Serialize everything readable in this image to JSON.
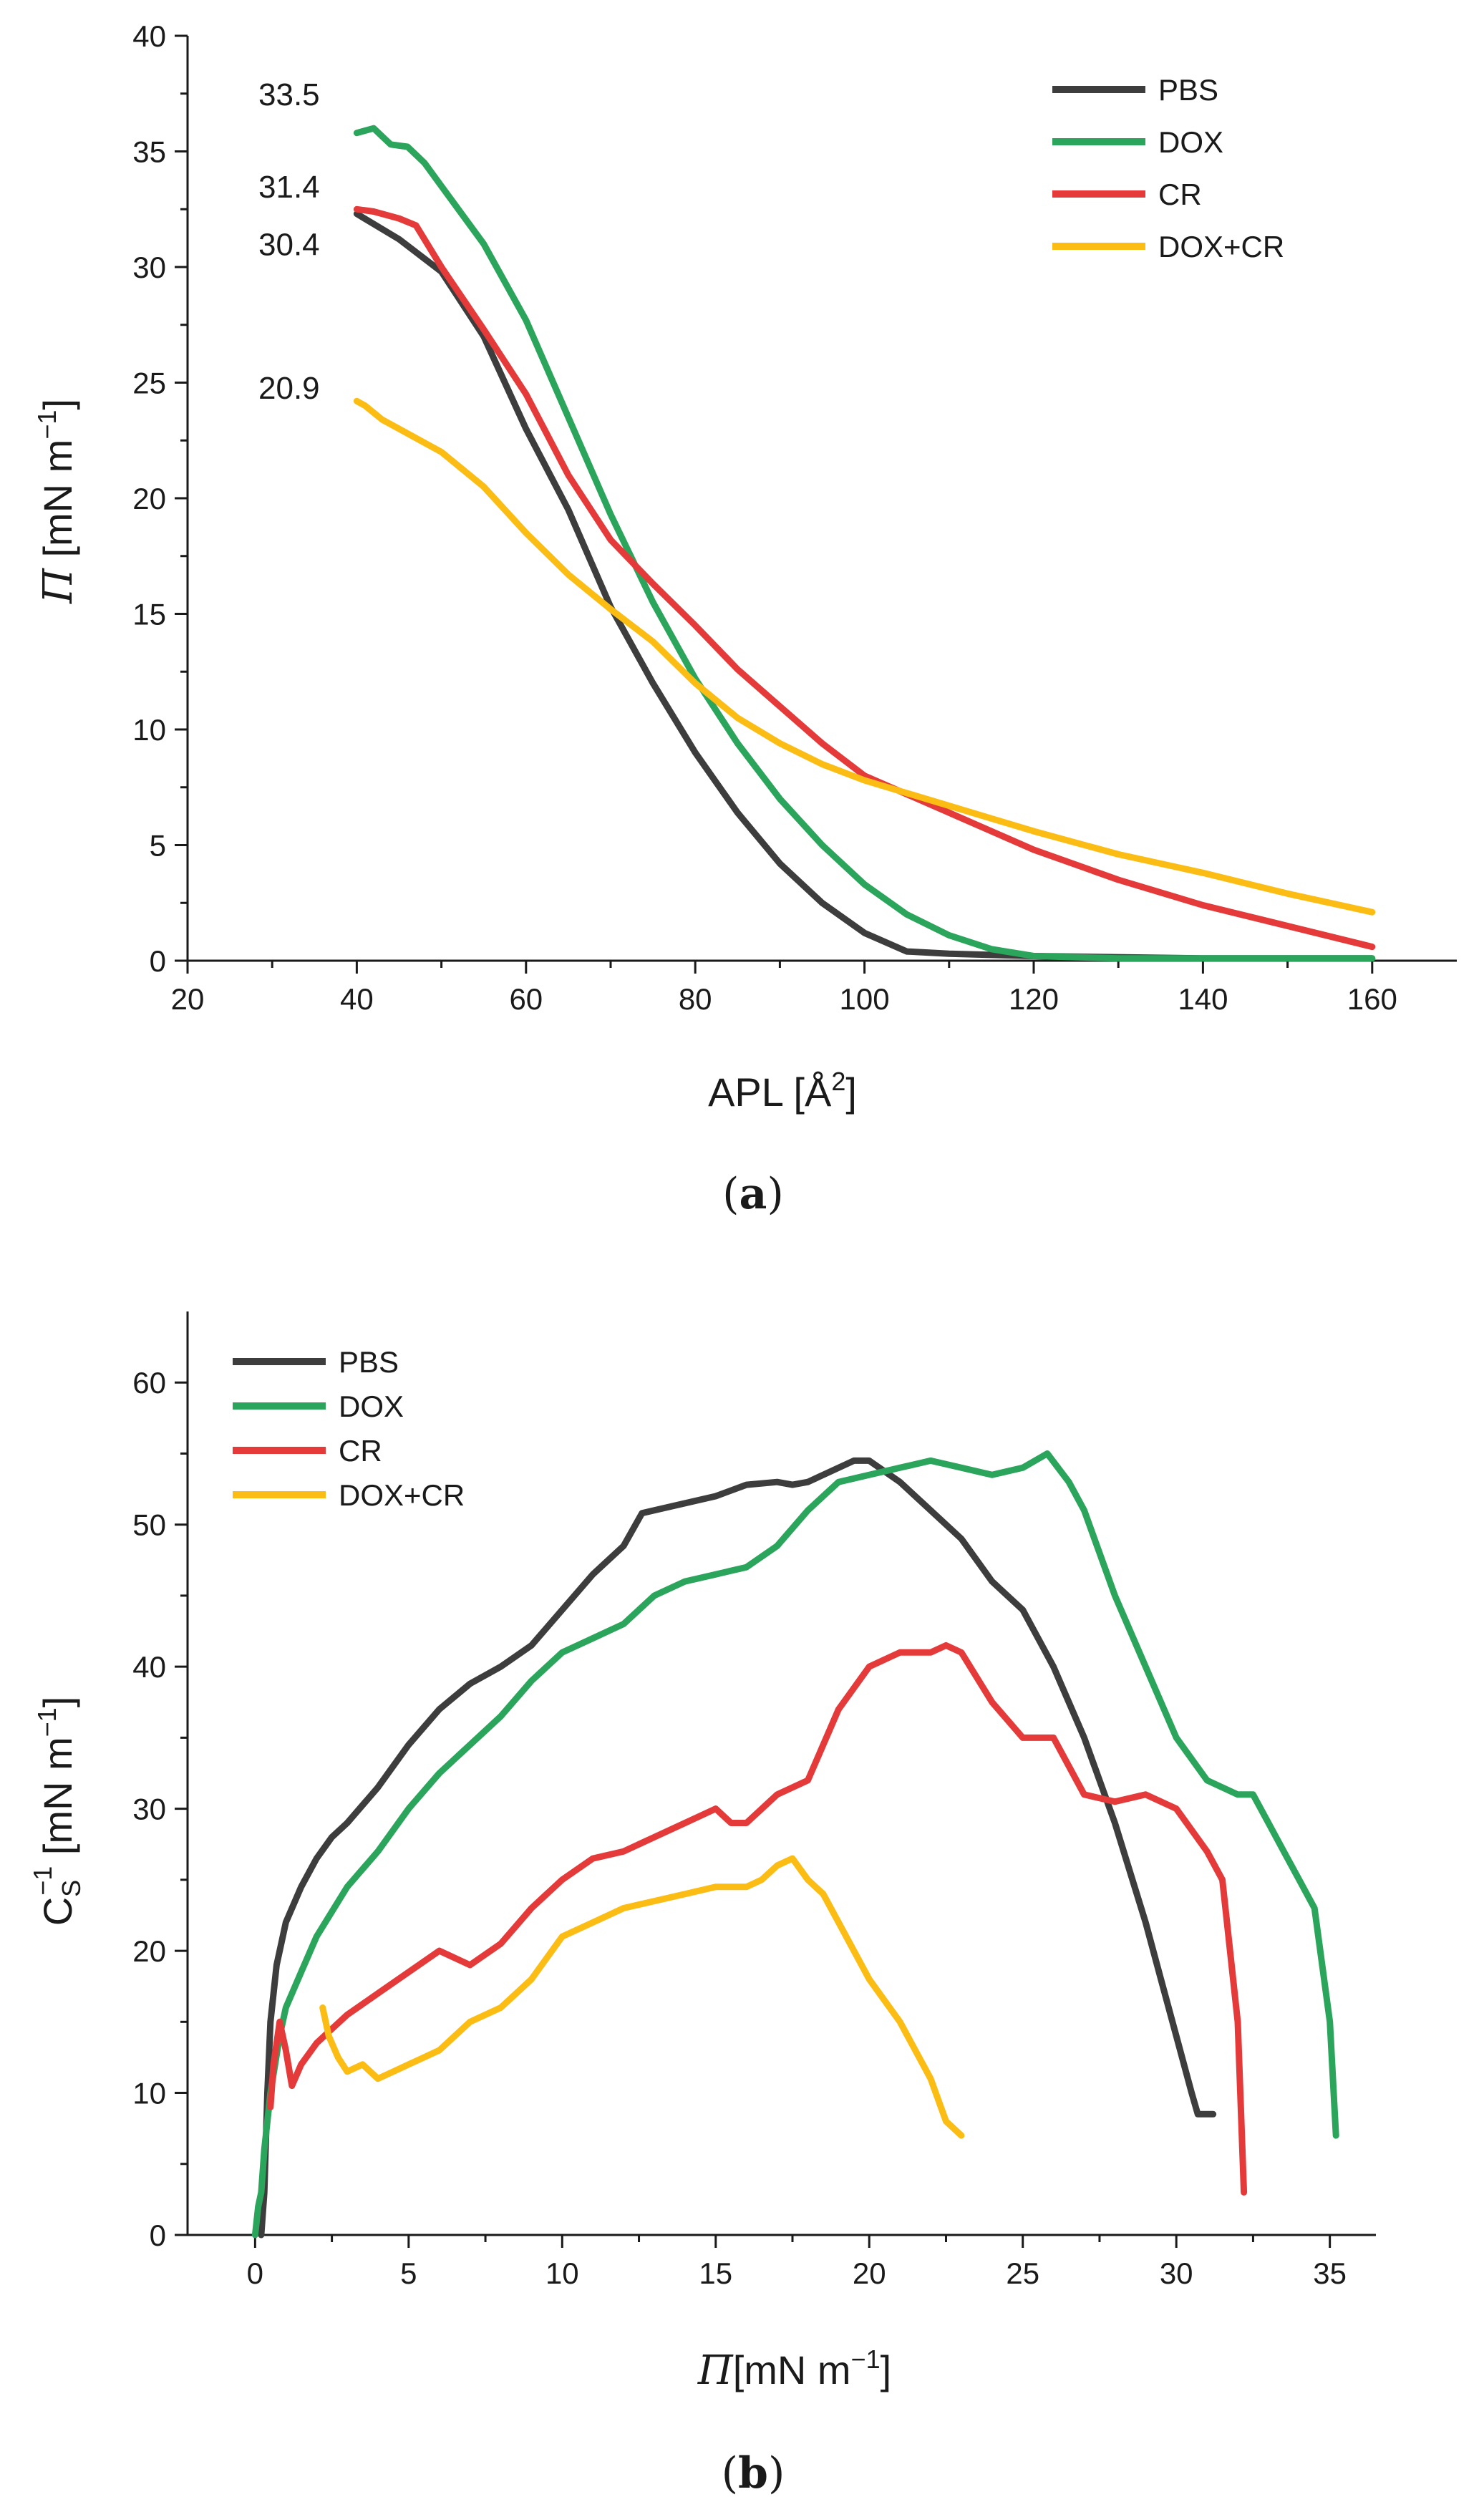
{
  "chart_data": [
    {
      "type": "line",
      "caption": "(a)",
      "caption_letter": "a",
      "xlabel": "APL [Å",
      "xlabel_sup": "2",
      "xlabel_end": "]",
      "ylabel_sym": "Π",
      "ylabel": " [mN m",
      "ylabel_sup": "−1",
      "ylabel_end": "]",
      "xlim": [
        20,
        170
      ],
      "ylim": [
        0,
        40
      ],
      "xticks": [
        "20",
        "40",
        "60",
        "80",
        "100",
        "120",
        "140",
        "160"
      ],
      "yticks": [
        "0",
        "5",
        "10",
        "15",
        "20",
        "25",
        "30",
        "35",
        "40"
      ],
      "legend": [
        "PBS",
        "DOX",
        "CR",
        "DOX+CR"
      ],
      "annotations": [
        {
          "text": "33.5",
          "x": 32,
          "y": 37.5
        },
        {
          "text": "31.4",
          "x": 32,
          "y": 33.5
        },
        {
          "text": "30.4",
          "x": 32,
          "y": 31.0
        },
        {
          "text": "20.9",
          "x": 32,
          "y": 24.8
        }
      ],
      "series": [
        {
          "name": "PBS",
          "color": "#3d3d3d",
          "x": [
            40,
            45,
            50,
            55,
            60,
            65,
            70,
            75,
            80,
            85,
            90,
            95,
            100,
            105,
            110,
            120,
            140,
            160
          ],
          "y": [
            32.3,
            31.2,
            29.8,
            27.0,
            23.0,
            19.5,
            15.3,
            12.0,
            9.0,
            6.4,
            4.2,
            2.5,
            1.2,
            0.4,
            0.3,
            0.2,
            0.1,
            0.1
          ]
        },
        {
          "name": "DOX",
          "color": "#2ba55b",
          "x": [
            40,
            42,
            44,
            46,
            48,
            50,
            55,
            60,
            65,
            70,
            75,
            80,
            85,
            90,
            95,
            100,
            105,
            110,
            115,
            120,
            130,
            140,
            160
          ],
          "y": [
            35.8,
            36.0,
            35.3,
            35.2,
            34.5,
            33.5,
            31.0,
            27.7,
            23.5,
            19.3,
            15.5,
            12.2,
            9.4,
            7.0,
            5.0,
            3.3,
            2.0,
            1.1,
            0.5,
            0.2,
            0.1,
            0.1,
            0.1
          ]
        },
        {
          "name": "CR",
          "color": "#e53a3a",
          "x": [
            40,
            42,
            45,
            47,
            50,
            55,
            60,
            65,
            70,
            75,
            80,
            85,
            90,
            95,
            100,
            110,
            120,
            130,
            140,
            150,
            160
          ],
          "y": [
            32.5,
            32.4,
            32.1,
            31.8,
            30.0,
            27.3,
            24.5,
            21.0,
            18.2,
            16.3,
            14.5,
            12.6,
            11.0,
            9.4,
            8.0,
            6.4,
            4.8,
            3.5,
            2.4,
            1.5,
            0.6
          ]
        },
        {
          "name": "DOX+CR",
          "color": "#fbbd14",
          "x": [
            40,
            41,
            43,
            45,
            50,
            55,
            60,
            65,
            70,
            75,
            80,
            85,
            90,
            95,
            100,
            110,
            120,
            130,
            140,
            150,
            160
          ],
          "y": [
            24.2,
            24.0,
            23.4,
            23.0,
            22.0,
            20.5,
            18.5,
            16.7,
            15.2,
            13.8,
            12.0,
            10.5,
            9.4,
            8.5,
            7.8,
            6.7,
            5.6,
            4.6,
            3.8,
            2.9,
            2.1
          ]
        }
      ]
    },
    {
      "type": "line",
      "caption": "(b)",
      "caption_letter": "b",
      "xlabel_sym": "Π",
      "xlabel": "[mN m",
      "xlabel_sup": "−1",
      "xlabel_end": "]",
      "ylabel": "C",
      "ylabel_sub": "S",
      "ylabel_sup": "−1",
      "ylabel_end": " [mN m",
      "ylabel_sup2": "−1",
      "ylabel_end2": "]",
      "xlim": [
        -2.2,
        36.5
      ],
      "ylim": [
        0,
        65
      ],
      "xticks": [
        "0",
        "5",
        "10",
        "15",
        "20",
        "25",
        "30",
        "35"
      ],
      "yticks": [
        "0",
        "10",
        "20",
        "30",
        "40",
        "50",
        "60"
      ],
      "legend": [
        "PBS",
        "DOX",
        "CR",
        "DOX+CR"
      ],
      "series": [
        {
          "name": "PBS",
          "color": "#3d3d3d",
          "x": [
            0.2,
            0.3,
            0.4,
            0.5,
            0.7,
            1.0,
            1.5,
            2,
            2.5,
            3,
            4,
            5,
            6,
            7,
            8,
            9,
            10,
            11,
            12,
            12.6,
            13,
            14,
            15,
            16,
            17,
            17.5,
            18,
            19,
            19.5,
            20,
            21,
            22,
            23,
            24,
            25,
            26,
            27,
            28,
            29,
            29.5,
            30,
            30.5,
            30.7,
            31,
            31.2
          ],
          "y": [
            0,
            3,
            10,
            15,
            19,
            22,
            24.5,
            26.5,
            28,
            29,
            31.5,
            34.5,
            37,
            38.8,
            40,
            41.5,
            44,
            46.5,
            48.5,
            50.8,
            51,
            51.5,
            52,
            52.8,
            53,
            52.8,
            53,
            54,
            54.5,
            54.5,
            53,
            51,
            49,
            46,
            44,
            40,
            35,
            29,
            22,
            18,
            14,
            10,
            8.5,
            8.5,
            8.5
          ]
        },
        {
          "name": "DOX",
          "color": "#2ba55b",
          "x": [
            0,
            0.1,
            0.2,
            0.3,
            0.5,
            0.8,
            1,
            1.5,
            2,
            3,
            4,
            5,
            6,
            7,
            8,
            9,
            10,
            11,
            12,
            13,
            14,
            15,
            16,
            17,
            18,
            19,
            20,
            21,
            22,
            23,
            24,
            25,
            25.8,
            26.5,
            27,
            28,
            29,
            30,
            31,
            32,
            32.5,
            33,
            33.5,
            34,
            34.5,
            35,
            35.2
          ],
          "y": [
            0,
            2,
            3,
            6,
            10,
            14,
            16,
            18.5,
            21,
            24.5,
            27,
            30,
            32.5,
            34.5,
            36.5,
            39,
            41,
            42,
            43,
            45,
            46,
            46.5,
            47,
            48.5,
            51,
            53,
            53.5,
            54,
            54.5,
            54,
            53.5,
            54,
            55,
            53,
            51,
            45,
            40,
            35,
            32,
            31,
            31,
            29,
            27,
            25,
            23,
            15,
            7
          ]
        },
        {
          "name": "CR",
          "color": "#e53a3a",
          "x": [
            0.5,
            0.6,
            0.8,
            1.0,
            1.2,
            1.5,
            2,
            2.5,
            3,
            4,
            5,
            6,
            7,
            8,
            9,
            10,
            11,
            12,
            13,
            14,
            15,
            15.5,
            16,
            17,
            18,
            19,
            20,
            21,
            22,
            22.5,
            23,
            24,
            25,
            26,
            27,
            28,
            29,
            30,
            31,
            31.5,
            32,
            32.2
          ],
          "y": [
            9,
            12,
            15,
            13,
            10.5,
            12,
            13.5,
            14.5,
            15.5,
            17,
            18.5,
            20,
            19,
            20.5,
            23,
            25,
            26.5,
            27,
            28,
            29,
            30,
            29,
            29,
            31,
            32,
            37,
            40,
            41,
            41,
            41.5,
            41,
            37.5,
            35,
            35,
            31,
            30.5,
            31,
            30,
            27,
            25,
            15,
            3
          ]
        },
        {
          "name": "DOX+CR",
          "color": "#fbbd14",
          "x": [
            2.2,
            2.4,
            2.7,
            3,
            3.5,
            4,
            4.5,
            5,
            5.5,
            6,
            7,
            8,
            9,
            10,
            11,
            12,
            13,
            14,
            15,
            16,
            16.5,
            17,
            17.5,
            18,
            18.5,
            19,
            20,
            21,
            22,
            22.5,
            23
          ],
          "y": [
            16,
            14,
            12.5,
            11.5,
            12,
            11,
            11.5,
            12,
            12.5,
            13,
            15,
            16,
            18,
            21,
            22,
            23,
            23.5,
            24,
            24.5,
            24.5,
            25,
            26,
            26.5,
            25,
            24,
            22,
            18,
            15,
            11,
            8,
            7
          ]
        }
      ]
    }
  ]
}
